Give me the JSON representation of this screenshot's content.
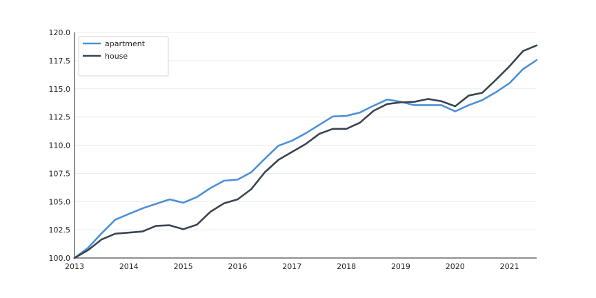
{
  "chart_data": {
    "type": "line",
    "title": "",
    "xlabel": "",
    "ylabel": "",
    "xlim": [
      2013.0,
      2021.5
    ],
    "ylim": [
      100.0,
      120.0
    ],
    "x_ticks": [
      "2013",
      "2014",
      "2015",
      "2016",
      "2017",
      "2018",
      "2019",
      "2020",
      "2021"
    ],
    "y_ticks": [
      "100.0",
      "102.5",
      "105.0",
      "107.5",
      "110.0",
      "112.5",
      "115.0",
      "117.5",
      "120.0"
    ],
    "grid": "horizontal",
    "legend_position": "top-left",
    "x": [
      2013.0,
      2013.25,
      2013.5,
      2013.75,
      2014.0,
      2014.25,
      2014.5,
      2014.75,
      2015.0,
      2015.25,
      2015.5,
      2015.75,
      2016.0,
      2016.25,
      2016.5,
      2016.75,
      2017.0,
      2017.25,
      2017.5,
      2017.75,
      2018.0,
      2018.25,
      2018.5,
      2018.75,
      2019.0,
      2019.25,
      2019.5,
      2019.75,
      2020.0,
      2020.25,
      2020.5,
      2020.75,
      2021.0,
      2021.25,
      2021.5
    ],
    "series": [
      {
        "name": "apartment",
        "color": "#4a90d9",
        "values": [
          100.0,
          100.9,
          102.2,
          103.4,
          103.9,
          104.4,
          104.8,
          105.2,
          104.9,
          105.4,
          106.2,
          106.85,
          106.95,
          107.6,
          108.8,
          109.95,
          110.4,
          111.05,
          111.8,
          112.55,
          112.6,
          112.9,
          113.5,
          114.05,
          113.85,
          113.55,
          113.55,
          113.55,
          113.0,
          113.55,
          114.0,
          114.7,
          115.5,
          116.75,
          117.55
        ]
      },
      {
        "name": "house",
        "color": "#3a4350",
        "values": [
          100.0,
          100.7,
          101.65,
          102.15,
          102.25,
          102.35,
          102.85,
          102.9,
          102.55,
          102.95,
          104.1,
          104.85,
          105.2,
          106.1,
          107.6,
          108.7,
          109.4,
          110.1,
          111.0,
          111.45,
          111.45,
          112.0,
          113.05,
          113.65,
          113.8,
          113.85,
          114.1,
          113.9,
          113.45,
          114.4,
          114.65,
          115.8,
          117.0,
          118.35,
          118.85
        ]
      }
    ]
  }
}
